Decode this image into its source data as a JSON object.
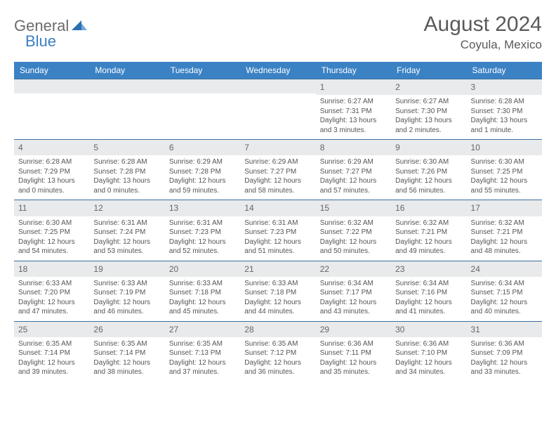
{
  "logo": {
    "general": "General",
    "blue": "Blue"
  },
  "header": {
    "month_title": "August 2024",
    "location": "Coyula, Mexico"
  },
  "colors": {
    "header_bg": "#3b82c4",
    "header_text": "#ffffff",
    "daynum_bg": "#e9eaeb",
    "row_border": "#3b6fa0",
    "text": "#555555",
    "logo_gray": "#6b6b6b",
    "logo_blue": "#3b7fc4"
  },
  "day_headers": [
    "Sunday",
    "Monday",
    "Tuesday",
    "Wednesday",
    "Thursday",
    "Friday",
    "Saturday"
  ],
  "weeks": [
    [
      {
        "num": "",
        "sunrise": "",
        "sunset": "",
        "daylight": ""
      },
      {
        "num": "",
        "sunrise": "",
        "sunset": "",
        "daylight": ""
      },
      {
        "num": "",
        "sunrise": "",
        "sunset": "",
        "daylight": ""
      },
      {
        "num": "",
        "sunrise": "",
        "sunset": "",
        "daylight": ""
      },
      {
        "num": "1",
        "sunrise": "Sunrise: 6:27 AM",
        "sunset": "Sunset: 7:31 PM",
        "daylight": "Daylight: 13 hours and 3 minutes."
      },
      {
        "num": "2",
        "sunrise": "Sunrise: 6:27 AM",
        "sunset": "Sunset: 7:30 PM",
        "daylight": "Daylight: 13 hours and 2 minutes."
      },
      {
        "num": "3",
        "sunrise": "Sunrise: 6:28 AM",
        "sunset": "Sunset: 7:30 PM",
        "daylight": "Daylight: 13 hours and 1 minute."
      }
    ],
    [
      {
        "num": "4",
        "sunrise": "Sunrise: 6:28 AM",
        "sunset": "Sunset: 7:29 PM",
        "daylight": "Daylight: 13 hours and 0 minutes."
      },
      {
        "num": "5",
        "sunrise": "Sunrise: 6:28 AM",
        "sunset": "Sunset: 7:28 PM",
        "daylight": "Daylight: 13 hours and 0 minutes."
      },
      {
        "num": "6",
        "sunrise": "Sunrise: 6:29 AM",
        "sunset": "Sunset: 7:28 PM",
        "daylight": "Daylight: 12 hours and 59 minutes."
      },
      {
        "num": "7",
        "sunrise": "Sunrise: 6:29 AM",
        "sunset": "Sunset: 7:27 PM",
        "daylight": "Daylight: 12 hours and 58 minutes."
      },
      {
        "num": "8",
        "sunrise": "Sunrise: 6:29 AM",
        "sunset": "Sunset: 7:27 PM",
        "daylight": "Daylight: 12 hours and 57 minutes."
      },
      {
        "num": "9",
        "sunrise": "Sunrise: 6:30 AM",
        "sunset": "Sunset: 7:26 PM",
        "daylight": "Daylight: 12 hours and 56 minutes."
      },
      {
        "num": "10",
        "sunrise": "Sunrise: 6:30 AM",
        "sunset": "Sunset: 7:25 PM",
        "daylight": "Daylight: 12 hours and 55 minutes."
      }
    ],
    [
      {
        "num": "11",
        "sunrise": "Sunrise: 6:30 AM",
        "sunset": "Sunset: 7:25 PM",
        "daylight": "Daylight: 12 hours and 54 minutes."
      },
      {
        "num": "12",
        "sunrise": "Sunrise: 6:31 AM",
        "sunset": "Sunset: 7:24 PM",
        "daylight": "Daylight: 12 hours and 53 minutes."
      },
      {
        "num": "13",
        "sunrise": "Sunrise: 6:31 AM",
        "sunset": "Sunset: 7:23 PM",
        "daylight": "Daylight: 12 hours and 52 minutes."
      },
      {
        "num": "14",
        "sunrise": "Sunrise: 6:31 AM",
        "sunset": "Sunset: 7:23 PM",
        "daylight": "Daylight: 12 hours and 51 minutes."
      },
      {
        "num": "15",
        "sunrise": "Sunrise: 6:32 AM",
        "sunset": "Sunset: 7:22 PM",
        "daylight": "Daylight: 12 hours and 50 minutes."
      },
      {
        "num": "16",
        "sunrise": "Sunrise: 6:32 AM",
        "sunset": "Sunset: 7:21 PM",
        "daylight": "Daylight: 12 hours and 49 minutes."
      },
      {
        "num": "17",
        "sunrise": "Sunrise: 6:32 AM",
        "sunset": "Sunset: 7:21 PM",
        "daylight": "Daylight: 12 hours and 48 minutes."
      }
    ],
    [
      {
        "num": "18",
        "sunrise": "Sunrise: 6:33 AM",
        "sunset": "Sunset: 7:20 PM",
        "daylight": "Daylight: 12 hours and 47 minutes."
      },
      {
        "num": "19",
        "sunrise": "Sunrise: 6:33 AM",
        "sunset": "Sunset: 7:19 PM",
        "daylight": "Daylight: 12 hours and 46 minutes."
      },
      {
        "num": "20",
        "sunrise": "Sunrise: 6:33 AM",
        "sunset": "Sunset: 7:18 PM",
        "daylight": "Daylight: 12 hours and 45 minutes."
      },
      {
        "num": "21",
        "sunrise": "Sunrise: 6:33 AM",
        "sunset": "Sunset: 7:18 PM",
        "daylight": "Daylight: 12 hours and 44 minutes."
      },
      {
        "num": "22",
        "sunrise": "Sunrise: 6:34 AM",
        "sunset": "Sunset: 7:17 PM",
        "daylight": "Daylight: 12 hours and 43 minutes."
      },
      {
        "num": "23",
        "sunrise": "Sunrise: 6:34 AM",
        "sunset": "Sunset: 7:16 PM",
        "daylight": "Daylight: 12 hours and 41 minutes."
      },
      {
        "num": "24",
        "sunrise": "Sunrise: 6:34 AM",
        "sunset": "Sunset: 7:15 PM",
        "daylight": "Daylight: 12 hours and 40 minutes."
      }
    ],
    [
      {
        "num": "25",
        "sunrise": "Sunrise: 6:35 AM",
        "sunset": "Sunset: 7:14 PM",
        "daylight": "Daylight: 12 hours and 39 minutes."
      },
      {
        "num": "26",
        "sunrise": "Sunrise: 6:35 AM",
        "sunset": "Sunset: 7:14 PM",
        "daylight": "Daylight: 12 hours and 38 minutes."
      },
      {
        "num": "27",
        "sunrise": "Sunrise: 6:35 AM",
        "sunset": "Sunset: 7:13 PM",
        "daylight": "Daylight: 12 hours and 37 minutes."
      },
      {
        "num": "28",
        "sunrise": "Sunrise: 6:35 AM",
        "sunset": "Sunset: 7:12 PM",
        "daylight": "Daylight: 12 hours and 36 minutes."
      },
      {
        "num": "29",
        "sunrise": "Sunrise: 6:36 AM",
        "sunset": "Sunset: 7:11 PM",
        "daylight": "Daylight: 12 hours and 35 minutes."
      },
      {
        "num": "30",
        "sunrise": "Sunrise: 6:36 AM",
        "sunset": "Sunset: 7:10 PM",
        "daylight": "Daylight: 12 hours and 34 minutes."
      },
      {
        "num": "31",
        "sunrise": "Sunrise: 6:36 AM",
        "sunset": "Sunset: 7:09 PM",
        "daylight": "Daylight: 12 hours and 33 minutes."
      }
    ]
  ]
}
